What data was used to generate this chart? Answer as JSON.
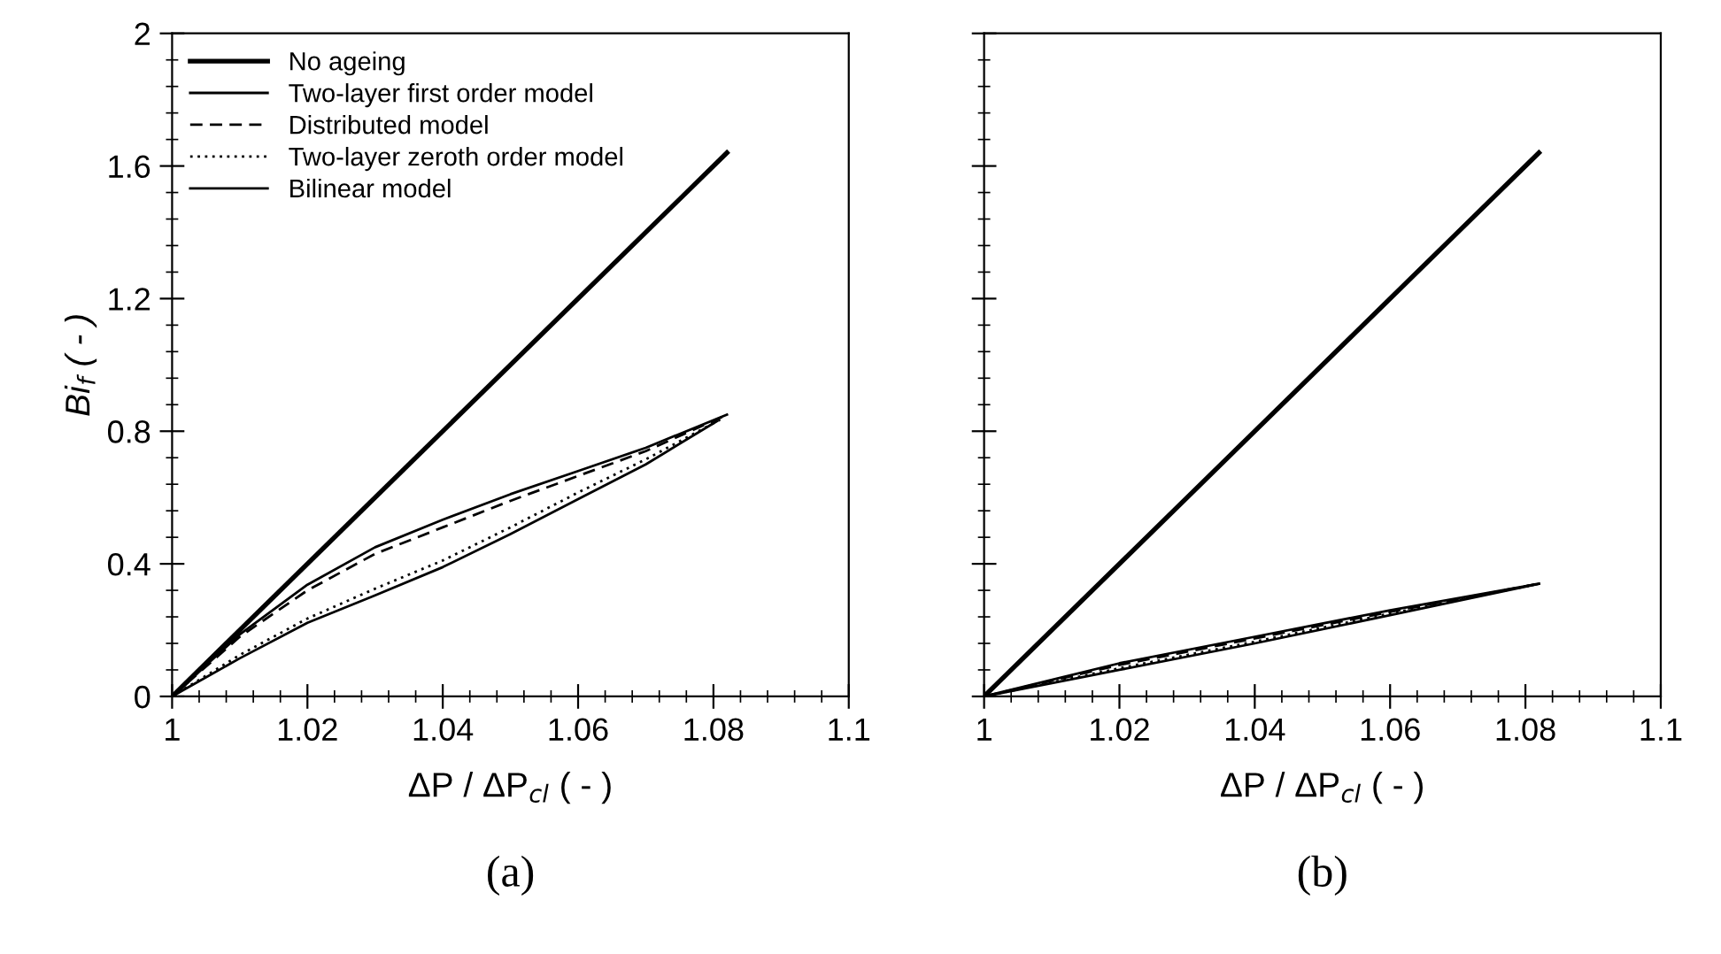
{
  "chart_data": [
    {
      "type": "line",
      "xlabel": "ΔP / ΔP$_{cl}$ ( - )",
      "ylabel": "Bi$_{f}$ ( - )",
      "xlim": [
        1,
        1.1
      ],
      "ylim": [
        0,
        2
      ],
      "xticks": [
        1,
        1.02,
        1.04,
        1.06,
        1.08,
        1.1
      ],
      "yticks": [
        0,
        0.4,
        0.8,
        1.2,
        1.6,
        2
      ],
      "legend": "top left",
      "annotations": [
        "(a)"
      ],
      "series": [
        {
          "name": "No ageing",
          "color": "#000000",
          "line_style": "solid",
          "x": [
            1,
            1.082
          ],
          "values": [
            0,
            1.64
          ]
        },
        {
          "name": "Two-layer first order model",
          "color": "#000000",
          "line_style": "solid",
          "x": [
            1,
            1.01,
            1.02,
            1.03,
            1.04,
            1.05,
            1.06,
            1.07,
            1.082
          ],
          "values": [
            0,
            0.187,
            0.337,
            0.45,
            0.533,
            0.61,
            0.68,
            0.75,
            0.85
          ]
        },
        {
          "name": "Distributed model",
          "color": "#000000",
          "line_style": "dashed",
          "x": [
            1,
            1.01,
            1.02,
            1.03,
            1.04,
            1.05,
            1.06,
            1.07,
            1.0815
          ],
          "values": [
            0,
            0.18,
            0.32,
            0.43,
            0.51,
            0.59,
            0.665,
            0.74,
            0.845
          ]
        },
        {
          "name": "Two-layer zeroth order model",
          "color": "#000000",
          "line_style": "dotted",
          "x": [
            1,
            1.01,
            1.02,
            1.03,
            1.04,
            1.05,
            1.06,
            1.07,
            1.081
          ],
          "values": [
            0,
            0.125,
            0.235,
            0.325,
            0.41,
            0.51,
            0.615,
            0.715,
            0.835
          ]
        },
        {
          "name": "Bilinear model",
          "color": "#000000",
          "line_style": "solid",
          "x": [
            1,
            1.01,
            1.02,
            1.03,
            1.04,
            1.05,
            1.06,
            1.07,
            1.0805
          ],
          "values": [
            0,
            0.115,
            0.222,
            0.305,
            0.39,
            0.49,
            0.595,
            0.7,
            0.83
          ]
        }
      ]
    },
    {
      "type": "line",
      "xlabel": "ΔP / ΔP$_{cl}$ ( - )",
      "xlim": [
        1,
        1.1
      ],
      "ylim": [
        0,
        2
      ],
      "xticks": [
        1,
        1.02,
        1.04,
        1.06,
        1.08,
        1.1
      ],
      "yticks": [
        {
          "value": 0,
          "label": null
        },
        {
          "value": 0.4,
          "label": null
        },
        {
          "value": 0.8,
          "label": null
        },
        {
          "value": 1.2,
          "label": null
        },
        {
          "value": 1.6,
          "label": null
        },
        {
          "value": 2,
          "label": null
        }
      ],
      "tick_labels": "x",
      "annotations": [
        "(b)"
      ],
      "series": [
        {
          "color": "#000000",
          "line_style": "solid",
          "x": [
            1,
            1.082
          ],
          "values": [
            0,
            1.64
          ]
        },
        {
          "color": "#000000",
          "line_style": "solid",
          "x": [
            1,
            1.02,
            1.04,
            1.06,
            1.082
          ],
          "values": [
            0,
            0.1,
            0.18,
            0.26,
            0.34
          ]
        },
        {
          "color": "#000000",
          "line_style": "dashed",
          "x": [
            1,
            1.02,
            1.04,
            1.06,
            1.082
          ],
          "values": [
            0,
            0.095,
            0.175,
            0.255,
            0.34
          ]
        },
        {
          "color": "#000000",
          "line_style": "dotted",
          "x": [
            1,
            1.02,
            1.04,
            1.06,
            1.082
          ],
          "values": [
            0,
            0.085,
            0.165,
            0.25,
            0.34
          ]
        },
        {
          "color": "#000000",
          "line_style": "solid",
          "x": [
            1,
            1.02,
            1.04,
            1.06,
            1.082
          ],
          "values": [
            0,
            0.08,
            0.16,
            0.245,
            0.34
          ]
        }
      ]
    }
  ]
}
